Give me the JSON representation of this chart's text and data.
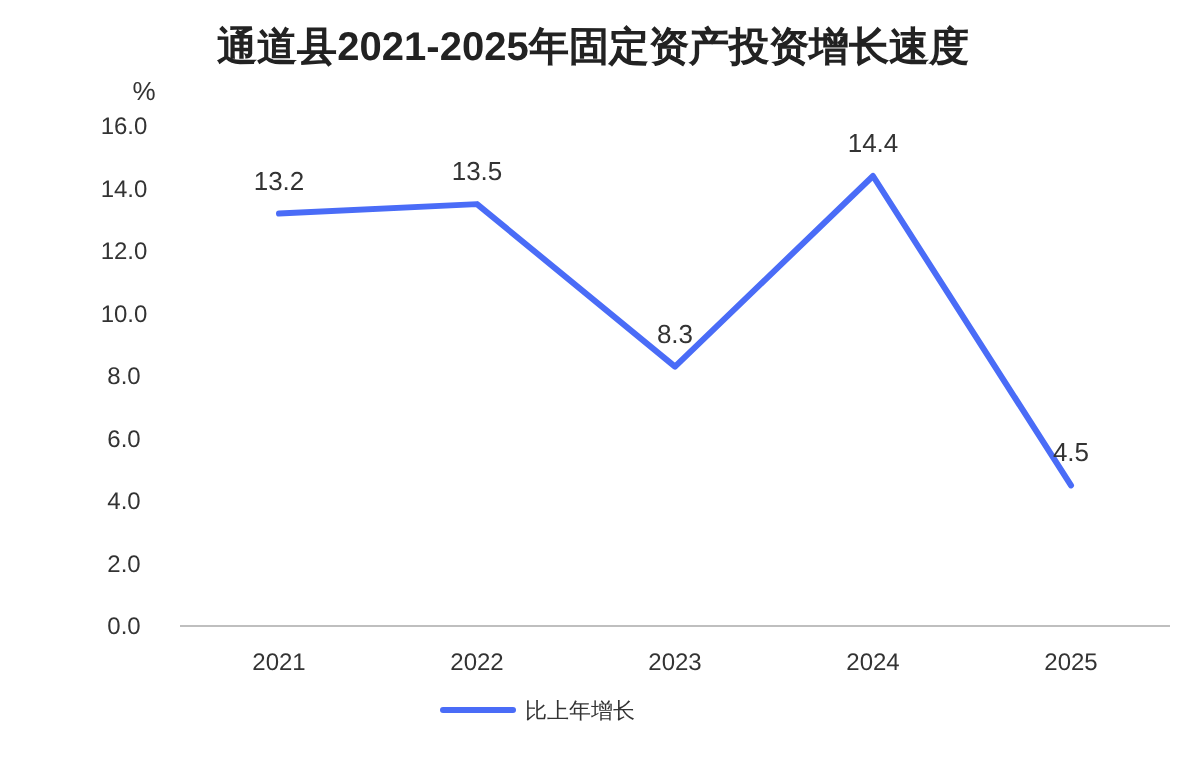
{
  "chart_data": {
    "type": "line",
    "title": "通道县2021-2025年固定资产投资增长速度",
    "ylabel": "%",
    "categories": [
      "2021",
      "2022",
      "2023",
      "2024",
      "2025"
    ],
    "series": [
      {
        "name": "比上年增长",
        "color": "#4a6cf7",
        "values": [
          13.2,
          13.5,
          8.3,
          14.4,
          4.5
        ]
      }
    ],
    "ylim": [
      0,
      16
    ],
    "yticks": [
      {
        "value": 0,
        "label": "0.0"
      },
      {
        "value": 2,
        "label": "2.0"
      },
      {
        "value": 4,
        "label": "4.0"
      },
      {
        "value": 6,
        "label": "6.0"
      },
      {
        "value": 8,
        "label": "8.0"
      },
      {
        "value": 10,
        "label": "10.0"
      },
      {
        "value": 12,
        "label": "12.0"
      },
      {
        "value": 14,
        "label": "14.0"
      },
      {
        "value": 16,
        "label": "16.0"
      }
    ],
    "data_labels": true,
    "legend": "bottom"
  }
}
